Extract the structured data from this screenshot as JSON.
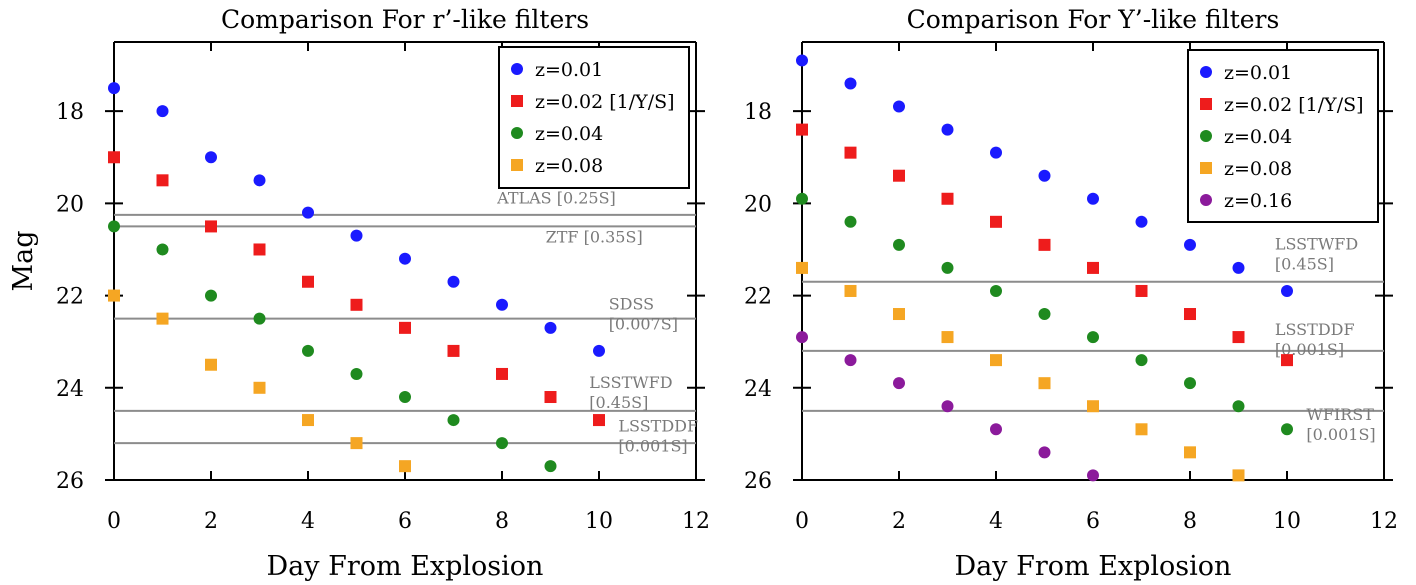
{
  "chart_data": [
    {
      "type": "scatter",
      "title": "Comparison For r’-like filters",
      "xlabel": "Day From Explosion",
      "ylabel": "Mag",
      "xlim": [
        0,
        12
      ],
      "ylim": [
        26,
        16.5
      ],
      "y_inverted": true,
      "xticks": [
        0,
        2,
        4,
        6,
        8,
        10,
        12
      ],
      "yticks": [
        18,
        20,
        22,
        24,
        26
      ],
      "legend": "top-right",
      "series": [
        {
          "name": "z=0.01",
          "marker": "circle",
          "color": "#1a1aff",
          "x": [
            0,
            1,
            2,
            3,
            4,
            5,
            6,
            7,
            8,
            9,
            10
          ],
          "y": [
            17.5,
            18.0,
            19.0,
            19.5,
            20.2,
            20.7,
            21.2,
            21.7,
            22.2,
            22.7,
            23.2
          ]
        },
        {
          "name": "z=0.02 [1/Y/S]",
          "marker": "square",
          "color": "#ee1c1c",
          "x": [
            0,
            1,
            2,
            3,
            4,
            5,
            6,
            7,
            8,
            9,
            10
          ],
          "y": [
            19.0,
            19.5,
            20.5,
            21.0,
            21.7,
            22.2,
            22.7,
            23.2,
            23.7,
            24.2,
            24.7
          ]
        },
        {
          "name": "z=0.04",
          "marker": "circle",
          "color": "#1f8a1f",
          "x": [
            0,
            1,
            2,
            3,
            4,
            5,
            6,
            7,
            8,
            9
          ],
          "y": [
            20.5,
            21.0,
            22.0,
            22.5,
            23.2,
            23.7,
            24.2,
            24.7,
            25.2,
            25.7
          ]
        },
        {
          "name": "z=0.08",
          "marker": "square",
          "color": "#f5a623",
          "x": [
            0,
            1,
            2,
            3,
            4,
            5,
            6
          ],
          "y": [
            22.0,
            22.5,
            23.5,
            24.0,
            24.7,
            25.2,
            25.7
          ]
        }
      ],
      "limits": [
        {
          "label": [
            "ATLAS [0.25S]"
          ],
          "mag": 20.25,
          "label_x": 7.9,
          "label_y": 20.0
        },
        {
          "label": [
            "ZTF [0.35S]"
          ],
          "mag": 20.5,
          "label_x": 8.9,
          "label_y": 20.85
        },
        {
          "label": [
            "SDSS",
            "[0.007S]"
          ],
          "mag": 22.5,
          "label_x": 10.2,
          "label_y": 22.3
        },
        {
          "label": [
            "LSSTWFD",
            "[0.45S]"
          ],
          "mag": 24.5,
          "label_x": 9.8,
          "label_y": 24.0
        },
        {
          "label": [
            "LSSTDDF",
            "[0.001S]"
          ],
          "mag": 25.2,
          "label_x": 10.4,
          "label_y": 24.95
        }
      ]
    },
    {
      "type": "scatter",
      "title": "Comparison For Y’-like filters",
      "xlabel": "Day From Explosion",
      "ylabel": "",
      "xlim": [
        0,
        12
      ],
      "ylim": [
        26,
        16.5
      ],
      "y_inverted": true,
      "xticks": [
        0,
        2,
        4,
        6,
        8,
        10,
        12
      ],
      "yticks": [
        18,
        20,
        22,
        24,
        26
      ],
      "legend": "top-right",
      "series": [
        {
          "name": "z=0.01",
          "marker": "circle",
          "color": "#1a1aff",
          "x": [
            0,
            1,
            2,
            3,
            4,
            5,
            6,
            7,
            8,
            9,
            10
          ],
          "y": [
            16.9,
            17.4,
            17.9,
            18.4,
            18.9,
            19.4,
            19.9,
            20.4,
            20.9,
            21.4,
            21.9
          ]
        },
        {
          "name": "z=0.02 [1/Y/S]",
          "marker": "square",
          "color": "#ee1c1c",
          "x": [
            0,
            1,
            2,
            3,
            4,
            5,
            6,
            7,
            8,
            9,
            10
          ],
          "y": [
            18.4,
            18.9,
            19.4,
            19.9,
            20.4,
            20.9,
            21.4,
            21.9,
            22.4,
            22.9,
            23.4
          ]
        },
        {
          "name": "z=0.04",
          "marker": "circle",
          "color": "#1f8a1f",
          "x": [
            0,
            1,
            2,
            3,
            4,
            5,
            6,
            7,
            8,
            9,
            10
          ],
          "y": [
            19.9,
            20.4,
            20.9,
            21.4,
            21.9,
            22.4,
            22.9,
            23.4,
            23.9,
            24.4,
            24.9
          ]
        },
        {
          "name": "z=0.08",
          "marker": "square",
          "color": "#f5a623",
          "x": [
            0,
            1,
            2,
            3,
            4,
            5,
            6,
            7,
            8,
            9
          ],
          "y": [
            21.4,
            21.9,
            22.4,
            22.9,
            23.4,
            23.9,
            24.4,
            24.9,
            25.4,
            25.9
          ]
        },
        {
          "name": "z=0.16",
          "marker": "circle",
          "color": "#8b1a9b",
          "x": [
            0,
            1,
            2,
            3,
            4,
            5,
            6
          ],
          "y": [
            22.9,
            23.4,
            23.9,
            24.4,
            24.9,
            25.4,
            25.9
          ]
        }
      ],
      "limits": [
        {
          "label": [
            "LSSTWFD",
            "[0.45S]"
          ],
          "mag": 21.7,
          "label_x": 9.75,
          "label_y": 21.0
        },
        {
          "label": [
            "LSSTDDF",
            "[0.001S]"
          ],
          "mag": 23.2,
          "label_x": 9.75,
          "label_y": 22.85
        },
        {
          "label": [
            "WFIRST",
            "[0.001S]"
          ],
          "mag": 24.5,
          "label_x": 10.4,
          "label_y": 24.7
        }
      ]
    }
  ]
}
